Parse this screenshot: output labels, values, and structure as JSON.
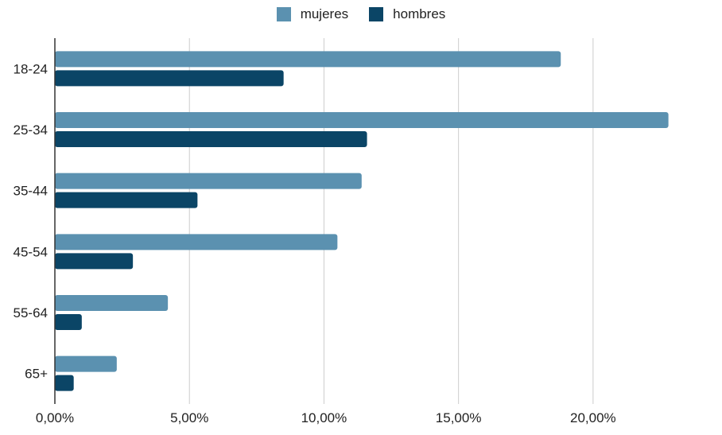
{
  "chart_data": {
    "type": "bar",
    "orientation": "horizontal",
    "categories": [
      "18-24",
      "25-34",
      "35-44",
      "45-54",
      "55-64",
      "65+"
    ],
    "series": [
      {
        "name": "mujeres",
        "color": "#5b91b0",
        "values": [
          18.8,
          22.8,
          11.4,
          10.5,
          4.2,
          2.3
        ]
      },
      {
        "name": "hombres",
        "color": "#0b4566",
        "values": [
          8.5,
          11.6,
          5.3,
          2.9,
          1.0,
          0.7
        ]
      }
    ],
    "x_ticks": [
      0,
      5,
      10,
      15,
      20
    ],
    "x_tick_labels": [
      "0,00%",
      "5,00%",
      "10,00%",
      "15,00%",
      "20,00%"
    ],
    "xlim": [
      0,
      24.2
    ],
    "grid": true,
    "legend_position": "top-center"
  }
}
